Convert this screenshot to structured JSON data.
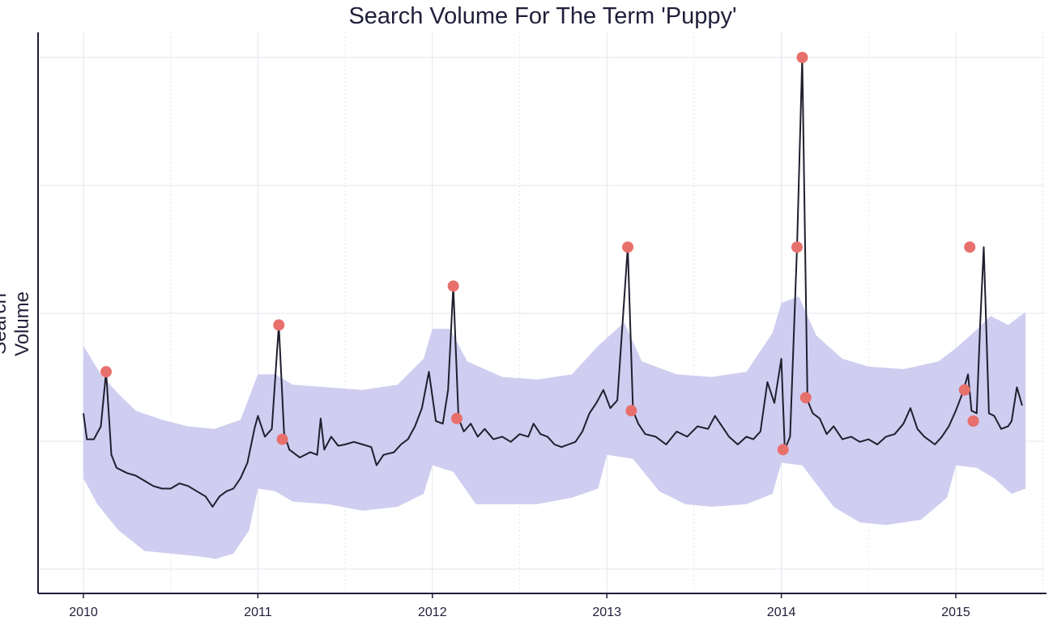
{
  "chart_data": {
    "type": "line",
    "title": "Search Volume For The Term 'Puppy'",
    "xlabel": "",
    "ylabel": "Search Volume",
    "x_ticks": [
      "2010",
      "2011",
      "2012",
      "2013",
      "2014",
      "2015"
    ],
    "xlim": [
      2010.0,
      2015.5
    ],
    "ylim": [
      0.0,
      4.2
    ],
    "y_tick_labels": "hidden",
    "grid": true,
    "colors": {
      "line": "#1f1f2e",
      "band": "#cfcdf0",
      "anomaly": "#e8706c",
      "grid": "#e4e4ee",
      "axis": "#1f1f3a"
    },
    "series": [
      {
        "name": "",
        "role": "observed",
        "values": [
          [
            2010.0,
            1.2
          ],
          [
            2010.02,
            1.0
          ],
          [
            2010.06,
            1.0
          ],
          [
            2010.1,
            1.1
          ],
          [
            2010.13,
            1.52
          ],
          [
            2010.16,
            0.88
          ],
          [
            2010.19,
            0.78
          ],
          [
            2010.25,
            0.74
          ],
          [
            2010.3,
            0.72
          ],
          [
            2010.35,
            0.68
          ],
          [
            2010.4,
            0.64
          ],
          [
            2010.45,
            0.62
          ],
          [
            2010.5,
            0.62
          ],
          [
            2010.55,
            0.66
          ],
          [
            2010.6,
            0.64
          ],
          [
            2010.65,
            0.6
          ],
          [
            2010.7,
            0.56
          ],
          [
            2010.74,
            0.48
          ],
          [
            2010.78,
            0.56
          ],
          [
            2010.82,
            0.6
          ],
          [
            2010.86,
            0.62
          ],
          [
            2010.9,
            0.7
          ],
          [
            2010.94,
            0.82
          ],
          [
            2010.98,
            1.08
          ],
          [
            2011.0,
            1.18
          ],
          [
            2011.04,
            1.02
          ],
          [
            2011.08,
            1.08
          ],
          [
            2011.12,
            1.88
          ],
          [
            2011.15,
            1.05
          ],
          [
            2011.18,
            0.92
          ],
          [
            2011.24,
            0.86
          ],
          [
            2011.3,
            0.9
          ],
          [
            2011.34,
            0.88
          ],
          [
            2011.36,
            1.16
          ],
          [
            2011.38,
            0.92
          ],
          [
            2011.42,
            1.02
          ],
          [
            2011.46,
            0.95
          ],
          [
            2011.5,
            0.96
          ],
          [
            2011.55,
            0.98
          ],
          [
            2011.6,
            0.96
          ],
          [
            2011.65,
            0.94
          ],
          [
            2011.68,
            0.8
          ],
          [
            2011.72,
            0.88
          ],
          [
            2011.78,
            0.9
          ],
          [
            2011.82,
            0.96
          ],
          [
            2011.86,
            1.0
          ],
          [
            2011.9,
            1.1
          ],
          [
            2011.94,
            1.24
          ],
          [
            2011.98,
            1.52
          ],
          [
            2012.02,
            1.14
          ],
          [
            2012.06,
            1.12
          ],
          [
            2012.09,
            1.38
          ],
          [
            2012.12,
            2.18
          ],
          [
            2012.15,
            1.16
          ],
          [
            2012.18,
            1.06
          ],
          [
            2012.22,
            1.12
          ],
          [
            2012.26,
            1.02
          ],
          [
            2012.3,
            1.08
          ],
          [
            2012.35,
            1.0
          ],
          [
            2012.4,
            1.02
          ],
          [
            2012.45,
            0.98
          ],
          [
            2012.5,
            1.04
          ],
          [
            2012.55,
            1.02
          ],
          [
            2012.58,
            1.12
          ],
          [
            2012.62,
            1.04
          ],
          [
            2012.66,
            1.02
          ],
          [
            2012.7,
            0.96
          ],
          [
            2012.74,
            0.94
          ],
          [
            2012.78,
            0.96
          ],
          [
            2012.82,
            0.98
          ],
          [
            2012.86,
            1.06
          ],
          [
            2012.9,
            1.2
          ],
          [
            2012.94,
            1.28
          ],
          [
            2012.98,
            1.38
          ],
          [
            2013.02,
            1.24
          ],
          [
            2013.06,
            1.3
          ],
          [
            2013.12,
            2.48
          ],
          [
            2013.15,
            1.22
          ],
          [
            2013.18,
            1.12
          ],
          [
            2013.22,
            1.04
          ],
          [
            2013.28,
            1.02
          ],
          [
            2013.34,
            0.96
          ],
          [
            2013.4,
            1.06
          ],
          [
            2013.46,
            1.02
          ],
          [
            2013.52,
            1.1
          ],
          [
            2013.58,
            1.08
          ],
          [
            2013.62,
            1.18
          ],
          [
            2013.66,
            1.1
          ],
          [
            2013.7,
            1.02
          ],
          [
            2013.75,
            0.96
          ],
          [
            2013.8,
            1.02
          ],
          [
            2013.84,
            1.0
          ],
          [
            2013.88,
            1.06
          ],
          [
            2013.92,
            1.44
          ],
          [
            2013.96,
            1.28
          ],
          [
            2014.0,
            1.62
          ],
          [
            2014.02,
            0.92
          ],
          [
            2014.05,
            1.02
          ],
          [
            2014.09,
            2.48
          ],
          [
            2014.12,
            3.94
          ],
          [
            2014.15,
            1.3
          ],
          [
            2014.18,
            1.2
          ],
          [
            2014.22,
            1.16
          ],
          [
            2014.26,
            1.04
          ],
          [
            2014.3,
            1.1
          ],
          [
            2014.35,
            1.0
          ],
          [
            2014.4,
            1.02
          ],
          [
            2014.45,
            0.98
          ],
          [
            2014.5,
            1.0
          ],
          [
            2014.55,
            0.96
          ],
          [
            2014.6,
            1.02
          ],
          [
            2014.65,
            1.04
          ],
          [
            2014.7,
            1.12
          ],
          [
            2014.74,
            1.24
          ],
          [
            2014.78,
            1.08
          ],
          [
            2014.82,
            1.02
          ],
          [
            2014.88,
            0.96
          ],
          [
            2014.92,
            1.02
          ],
          [
            2014.96,
            1.1
          ],
          [
            2015.0,
            1.22
          ],
          [
            2015.04,
            1.36
          ],
          [
            2015.07,
            1.5
          ],
          [
            2015.09,
            1.22
          ],
          [
            2015.12,
            1.2
          ],
          [
            2015.14,
            1.9
          ],
          [
            2015.16,
            2.48
          ],
          [
            2015.19,
            1.2
          ],
          [
            2015.22,
            1.18
          ],
          [
            2015.26,
            1.08
          ],
          [
            2015.3,
            1.1
          ],
          [
            2015.32,
            1.14
          ],
          [
            2015.35,
            1.4
          ],
          [
            2015.38,
            1.26
          ]
        ]
      },
      {
        "name": "",
        "role": "upper-bound",
        "values": [
          [
            2010.0,
            1.72
          ],
          [
            2010.1,
            1.5
          ],
          [
            2010.2,
            1.35
          ],
          [
            2010.3,
            1.22
          ],
          [
            2010.45,
            1.15
          ],
          [
            2010.6,
            1.1
          ],
          [
            2010.75,
            1.08
          ],
          [
            2010.9,
            1.15
          ],
          [
            2011.0,
            1.5
          ],
          [
            2011.1,
            1.5
          ],
          [
            2011.2,
            1.42
          ],
          [
            2011.4,
            1.4
          ],
          [
            2011.6,
            1.38
          ],
          [
            2011.8,
            1.42
          ],
          [
            2011.95,
            1.62
          ],
          [
            2012.0,
            1.85
          ],
          [
            2012.1,
            1.85
          ],
          [
            2012.2,
            1.6
          ],
          [
            2012.4,
            1.48
          ],
          [
            2012.6,
            1.46
          ],
          [
            2012.8,
            1.5
          ],
          [
            2012.95,
            1.72
          ],
          [
            2013.1,
            1.9
          ],
          [
            2013.2,
            1.6
          ],
          [
            2013.4,
            1.5
          ],
          [
            2013.6,
            1.48
          ],
          [
            2013.8,
            1.52
          ],
          [
            2013.95,
            1.82
          ],
          [
            2014.0,
            2.05
          ],
          [
            2014.1,
            2.1
          ],
          [
            2014.2,
            1.8
          ],
          [
            2014.35,
            1.62
          ],
          [
            2014.5,
            1.56
          ],
          [
            2014.7,
            1.54
          ],
          [
            2014.9,
            1.6
          ],
          [
            2015.0,
            1.7
          ],
          [
            2015.1,
            1.82
          ],
          [
            2015.2,
            1.95
          ],
          [
            2015.3,
            1.88
          ],
          [
            2015.4,
            1.98
          ]
        ]
      },
      {
        "name": "",
        "role": "lower-bound",
        "values": [
          [
            2010.0,
            0.7
          ],
          [
            2010.08,
            0.5
          ],
          [
            2010.2,
            0.3
          ],
          [
            2010.35,
            0.14
          ],
          [
            2010.5,
            0.12
          ],
          [
            2010.65,
            0.1
          ],
          [
            2010.76,
            0.08
          ],
          [
            2010.86,
            0.12
          ],
          [
            2010.95,
            0.3
          ],
          [
            2011.0,
            0.62
          ],
          [
            2011.1,
            0.6
          ],
          [
            2011.2,
            0.52
          ],
          [
            2011.4,
            0.5
          ],
          [
            2011.6,
            0.45
          ],
          [
            2011.8,
            0.48
          ],
          [
            2011.95,
            0.58
          ],
          [
            2012.0,
            0.8
          ],
          [
            2012.12,
            0.75
          ],
          [
            2012.25,
            0.5
          ],
          [
            2012.4,
            0.5
          ],
          [
            2012.6,
            0.5
          ],
          [
            2012.8,
            0.55
          ],
          [
            2012.95,
            0.62
          ],
          [
            2013.0,
            0.88
          ],
          [
            2013.15,
            0.85
          ],
          [
            2013.3,
            0.6
          ],
          [
            2013.45,
            0.5
          ],
          [
            2013.6,
            0.48
          ],
          [
            2013.8,
            0.5
          ],
          [
            2013.95,
            0.58
          ],
          [
            2014.0,
            0.82
          ],
          [
            2014.12,
            0.8
          ],
          [
            2014.3,
            0.48
          ],
          [
            2014.45,
            0.36
          ],
          [
            2014.6,
            0.34
          ],
          [
            2014.8,
            0.38
          ],
          [
            2014.95,
            0.55
          ],
          [
            2015.0,
            0.8
          ],
          [
            2015.12,
            0.78
          ],
          [
            2015.22,
            0.7
          ],
          [
            2015.32,
            0.58
          ],
          [
            2015.4,
            0.62
          ]
        ]
      },
      {
        "name": "",
        "role": "anomalies",
        "values": [
          [
            2010.13,
            1.52
          ],
          [
            2011.12,
            1.88
          ],
          [
            2011.14,
            1.0
          ],
          [
            2012.12,
            2.18
          ],
          [
            2012.14,
            1.16
          ],
          [
            2013.12,
            2.48
          ],
          [
            2013.14,
            1.22
          ],
          [
            2014.01,
            0.92
          ],
          [
            2014.09,
            2.48
          ],
          [
            2014.12,
            3.94
          ],
          [
            2014.14,
            1.32
          ],
          [
            2015.05,
            1.38
          ],
          [
            2015.08,
            2.48
          ],
          [
            2015.1,
            1.14
          ]
        ]
      }
    ]
  }
}
